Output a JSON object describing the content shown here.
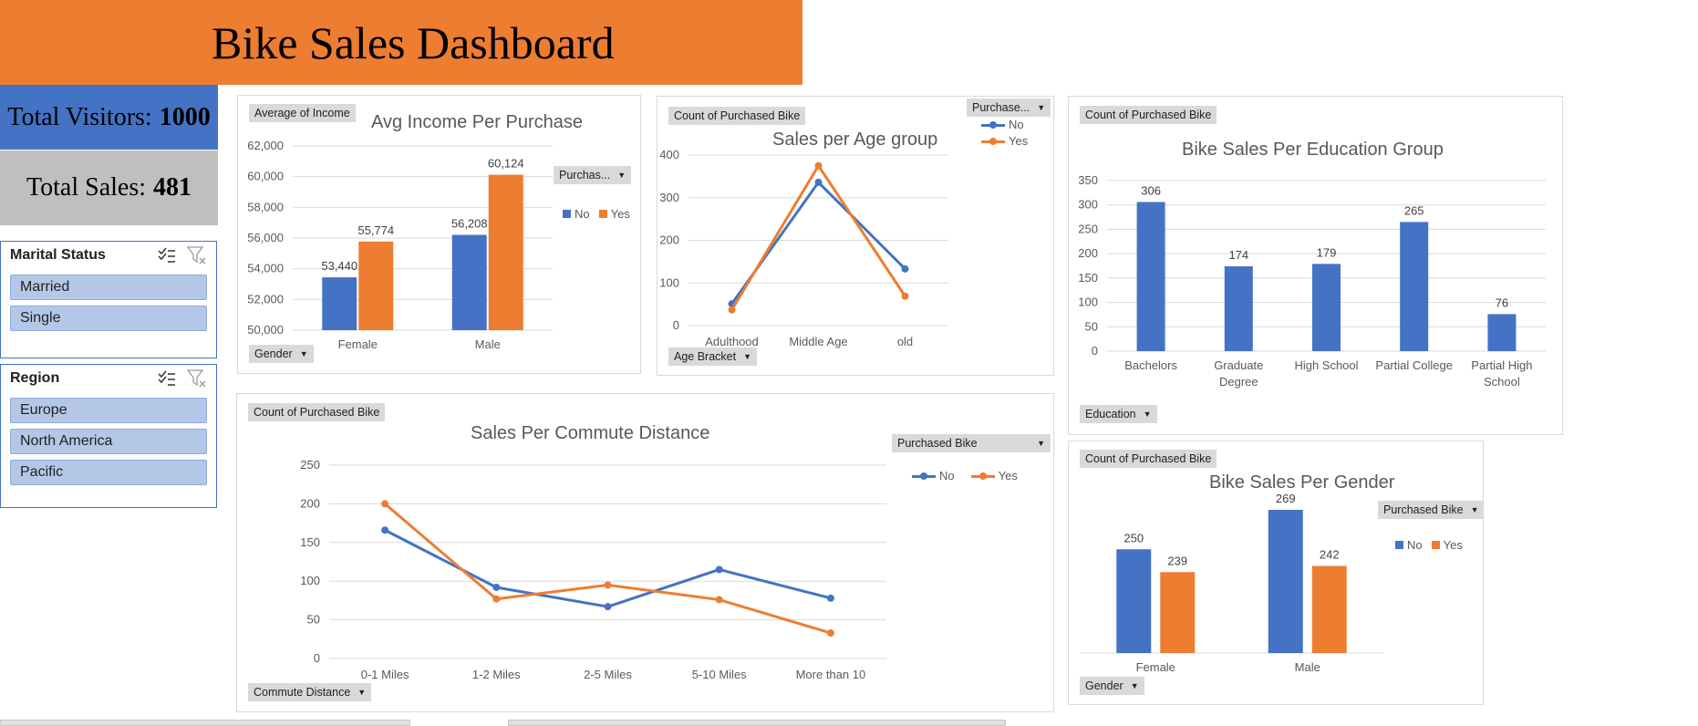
{
  "dashboard": {
    "title": "Bike Sales Dashboard",
    "visitors_label": "Total Visitors:",
    "visitors_value": "1000",
    "sales_label": "Total Sales:",
    "sales_value": "481"
  },
  "colors": {
    "no": "#4472C4",
    "yes": "#ED7D31",
    "banner": "#ED7D31",
    "kpi_visitors": "#4472C4",
    "kpi_sales": "#BFBFBF"
  },
  "slicers": [
    {
      "title": "Marital Status",
      "items": [
        "Married",
        "Single"
      ]
    },
    {
      "title": "Region",
      "items": [
        "Europe",
        "North America",
        "Pacific"
      ]
    }
  ],
  "panels": {
    "income": {
      "value_field": "Average of Income",
      "axis_field": "Gender",
      "legend_field": "Purchas..."
    },
    "age": {
      "value_field": "Count of Purchased Bike",
      "axis_field": "Age Bracket",
      "legend_field": "Purchase..."
    },
    "education": {
      "value_field": "Count of Purchased Bike",
      "axis_field": "Education"
    },
    "commute": {
      "value_field": "Count of Purchased Bike",
      "axis_field": "Commute Distance",
      "legend_field": "Purchased Bike"
    },
    "gender": {
      "value_field": "Count of Purchased Bike",
      "axis_field": "Gender",
      "legend_field": "Purchased Bike"
    }
  },
  "legend_labels": {
    "no": "No",
    "yes": "Yes"
  },
  "chart_data": [
    {
      "id": "income",
      "type": "bar",
      "title": "Avg Income Per Purchase",
      "categories": [
        "Female",
        "Male"
      ],
      "series": [
        {
          "name": "No",
          "values": [
            53440,
            56208
          ]
        },
        {
          "name": "Yes",
          "values": [
            55774,
            60124
          ]
        }
      ],
      "data_labels": [
        [
          "53,440",
          "56,208"
        ],
        [
          "55,774",
          "60,124"
        ]
      ],
      "ylim": [
        50000,
        62000
      ],
      "yticks": [
        "50,000",
        "52,000",
        "54,000",
        "56,000",
        "58,000",
        "60,000",
        "62,000"
      ]
    },
    {
      "id": "age",
      "type": "line",
      "title": "Sales per Age group",
      "categories": [
        "Adulthood",
        "Middle Age",
        "old"
      ],
      "series": [
        {
          "name": "No",
          "values": [
            51,
            336,
            133
          ]
        },
        {
          "name": "Yes",
          "values": [
            37,
            375,
            69
          ]
        }
      ],
      "ylim": [
        0,
        400
      ],
      "yticks": [
        "0",
        "100",
        "200",
        "300",
        "400"
      ]
    },
    {
      "id": "education",
      "type": "bar",
      "title": "Bike Sales Per Education Group",
      "categories": [
        "Bachelors",
        "Graduate Degree",
        "High School",
        "Partial College",
        "Partial High School"
      ],
      "category_lines": [
        [
          "Bachelors"
        ],
        [
          "Graduate",
          "Degree"
        ],
        [
          "High School"
        ],
        [
          "Partial College"
        ],
        [
          "Partial High",
          "School"
        ]
      ],
      "series": [
        {
          "name": "Count",
          "values": [
            306,
            174,
            179,
            265,
            76
          ]
        }
      ],
      "data_labels": [
        [
          "306",
          "174",
          "179",
          "265",
          "76"
        ]
      ],
      "ylim": [
        0,
        350
      ],
      "yticks": [
        "0",
        "50",
        "100",
        "150",
        "200",
        "250",
        "300",
        "350"
      ]
    },
    {
      "id": "commute",
      "type": "line",
      "title": "Sales Per Commute Distance",
      "categories": [
        "0-1 Miles",
        "1-2 Miles",
        "2-5 Miles",
        "5-10 Miles",
        "More than 10"
      ],
      "series": [
        {
          "name": "No",
          "values": [
            166,
            92,
            67,
            115,
            78
          ]
        },
        {
          "name": "Yes",
          "values": [
            200,
            77,
            95,
            76,
            33
          ]
        }
      ],
      "ylim": [
        0,
        250
      ],
      "yticks": [
        "0",
        "50",
        "100",
        "150",
        "200",
        "250"
      ]
    },
    {
      "id": "gender",
      "type": "bar",
      "title": "Bike Sales Per Gender",
      "categories": [
        "Female",
        "Male"
      ],
      "series": [
        {
          "name": "No",
          "values": [
            250,
            269
          ]
        },
        {
          "name": "Yes",
          "values": [
            239,
            242
          ]
        }
      ],
      "data_labels": [
        [
          "250",
          "269"
        ],
        [
          "239",
          "242"
        ]
      ],
      "ylim": [
        200,
        280
      ]
    }
  ]
}
